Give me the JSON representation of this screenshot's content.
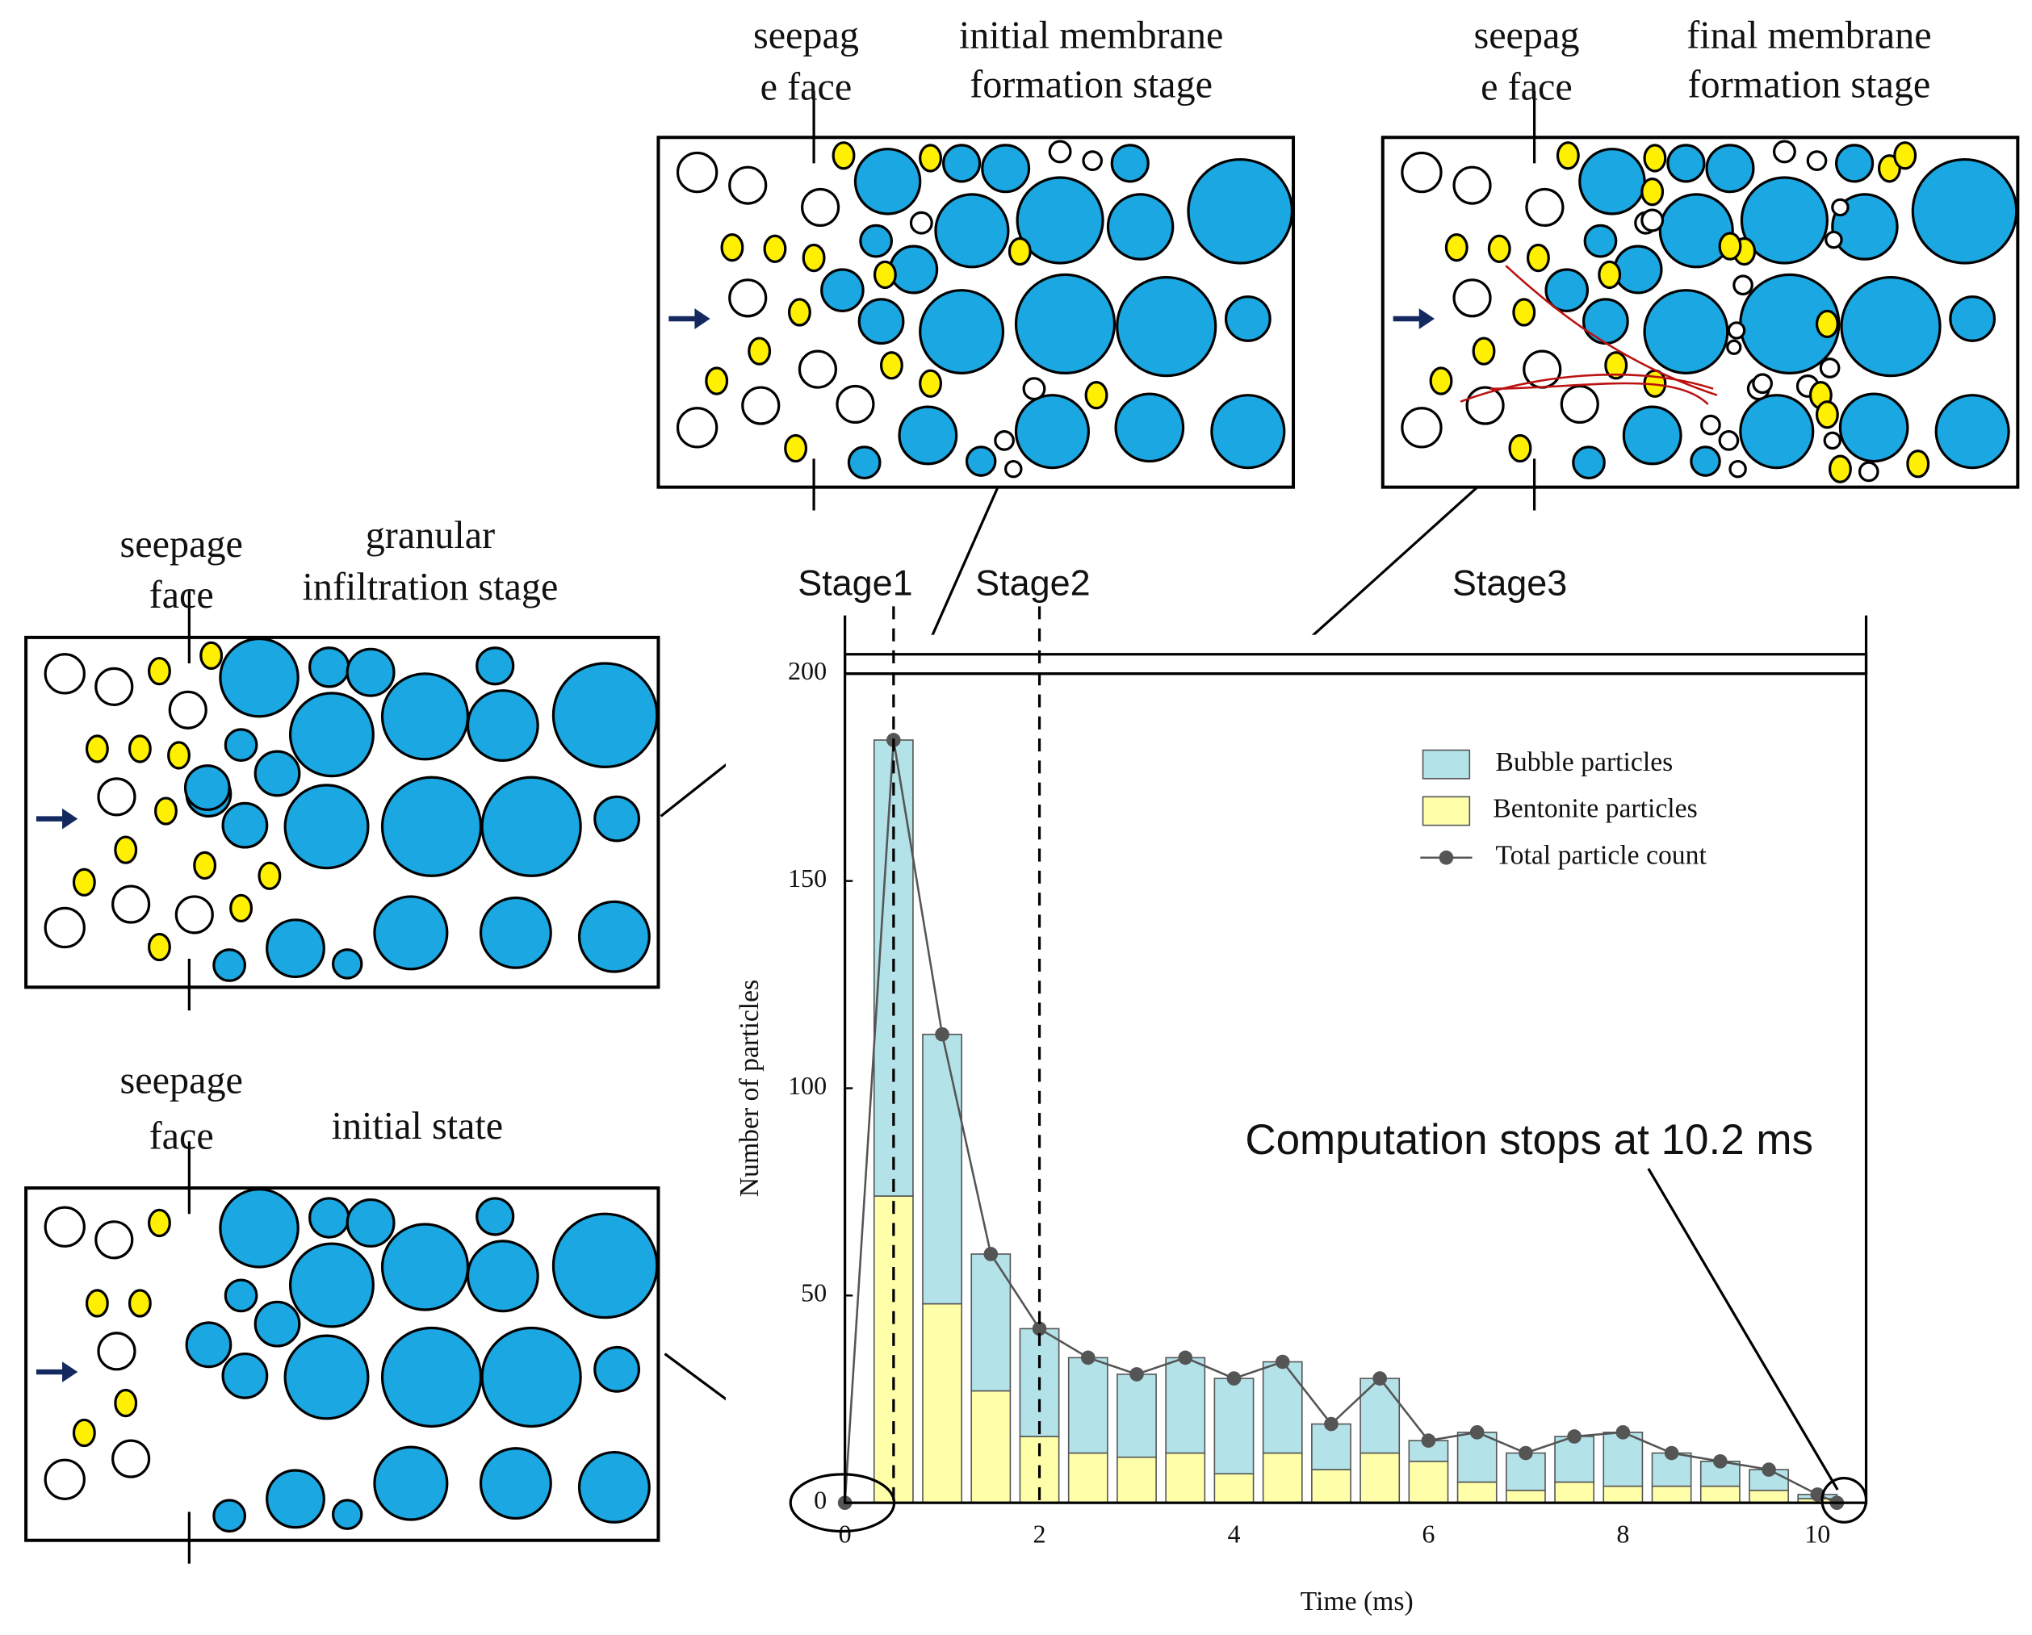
{
  "chart_data": {
    "type": "bar",
    "stacked": true,
    "x_label": "Time (ms)",
    "y_label": "Number of particles",
    "x": [
      0.5,
      1,
      1.5,
      2,
      2.5,
      3,
      3.5,
      4,
      4.5,
      5,
      5.5,
      6,
      6.5,
      7,
      7.5,
      8,
      8.5,
      9,
      9.5,
      10
    ],
    "series": [
      {
        "name": "Bubble particles",
        "color": "#b3e2e8",
        "values": [
          110,
          65,
          33,
          26,
          23,
          20,
          23,
          23,
          22,
          11,
          18,
          5,
          12,
          9,
          11,
          13,
          8,
          6,
          5,
          1
        ]
      },
      {
        "name": "Bentonite particles",
        "color": "#ffffaa",
        "values": [
          74,
          48,
          27,
          16,
          12,
          11,
          12,
          7,
          12,
          8,
          12,
          10,
          5,
          3,
          5,
          4,
          4,
          4,
          3,
          1
        ]
      },
      {
        "name": "Total particle count",
        "type": "line",
        "color": "#555555",
        "x": [
          0,
          0.5,
          1,
          1.5,
          2,
          2.5,
          3,
          3.5,
          4,
          4.5,
          5,
          5.5,
          6,
          6.5,
          7,
          7.5,
          8,
          8.5,
          9,
          9.5,
          10,
          10.2
        ],
        "values": [
          0,
          184,
          113,
          60,
          42,
          35,
          31,
          35,
          30,
          34,
          19,
          30,
          15,
          17,
          12,
          16,
          17,
          12,
          10,
          8,
          2,
          0
        ]
      }
    ],
    "xlim": [
      0,
      10.5
    ],
    "ylim": [
      0,
      200
    ],
    "xticks": [
      0,
      2,
      4,
      6,
      8,
      10
    ],
    "yticks": [
      0,
      50,
      100,
      150,
      200
    ],
    "legend": "upper right",
    "stages": [
      "Stage1",
      "Stage2",
      "Stage3"
    ],
    "stage_boundaries": [
      0.5,
      2
    ],
    "annotation": "Computation stops at 10.2 ms"
  },
  "panels": [
    {
      "face_label": [
        "seepage",
        "face"
      ],
      "title": [
        "initial state"
      ]
    },
    {
      "face_label": [
        "seepage",
        "face"
      ],
      "title": [
        "granular",
        "infiltration stage"
      ]
    },
    {
      "face_label": [
        "seepag",
        "e face"
      ],
      "title": [
        "initial membrane",
        "formation stage"
      ]
    },
    {
      "face_label": [
        "seepag",
        "e face"
      ],
      "title": [
        "final membrane",
        "formation stage"
      ]
    }
  ]
}
